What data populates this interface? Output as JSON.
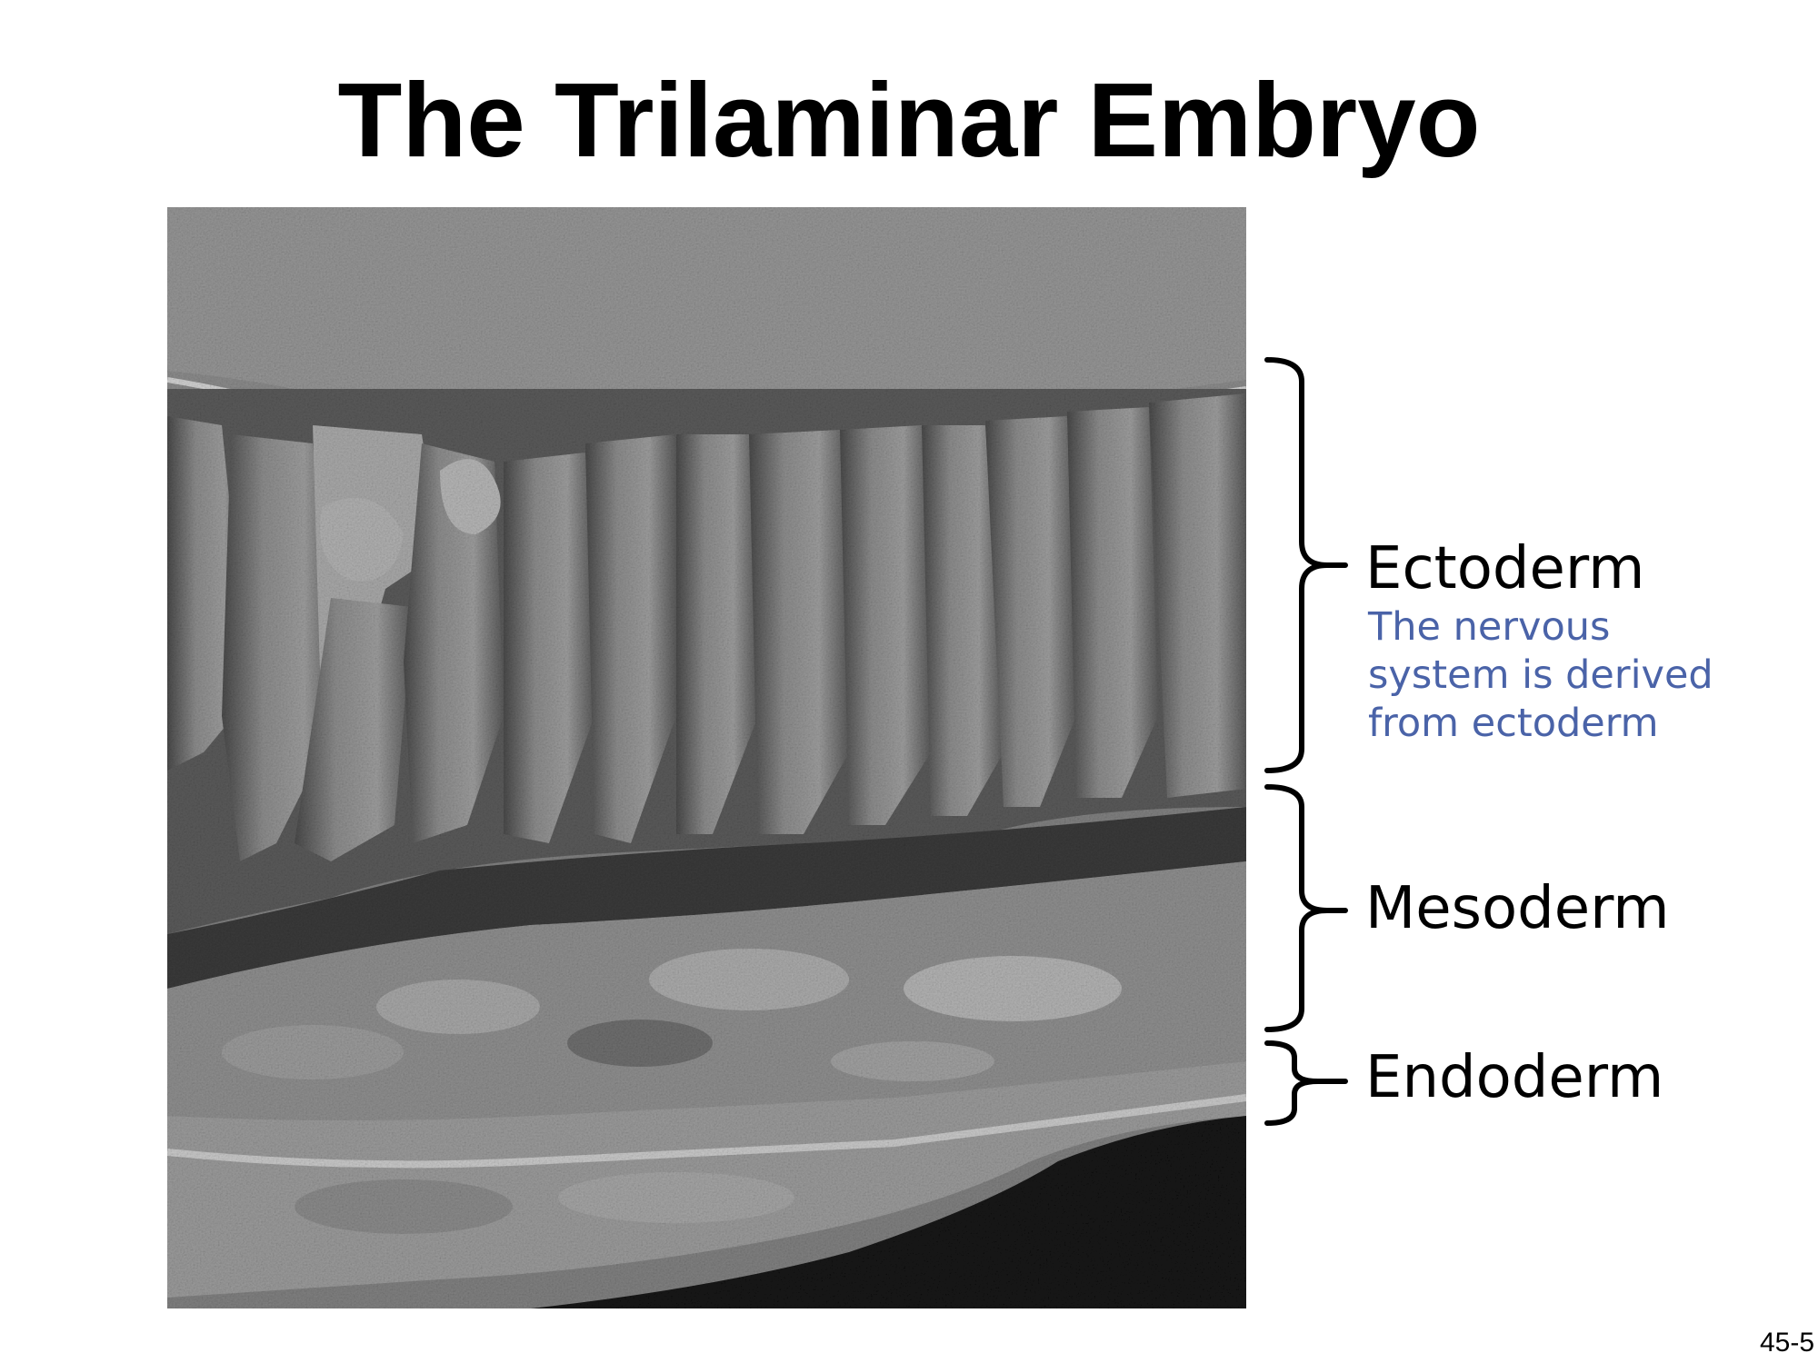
{
  "slide": {
    "title": "The Trilaminar Embryo",
    "page_number": "45-5"
  },
  "image": {
    "subject": "micrograph",
    "icon": "sem-micrograph"
  },
  "labels": {
    "ectoderm": "Ectoderm",
    "mesoderm": "Mesoderm",
    "endoderm": "Endoderm"
  },
  "note": {
    "lines": [
      "The nervous",
      "system is derived",
      "from ectoderm"
    ],
    "color": "#4a63a8"
  }
}
